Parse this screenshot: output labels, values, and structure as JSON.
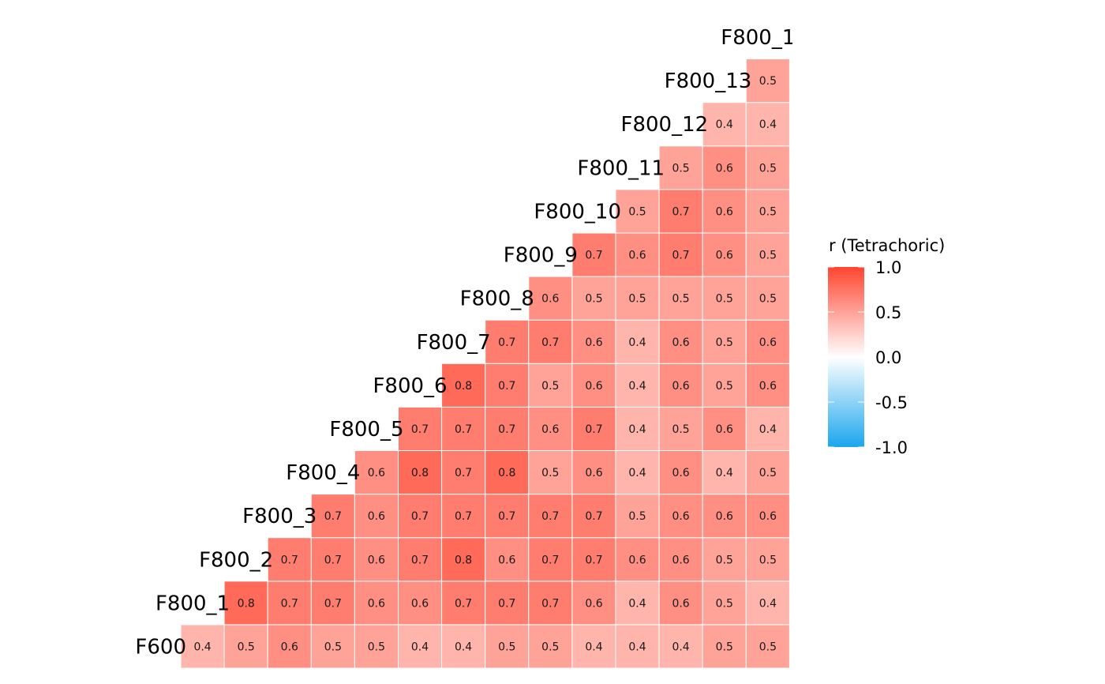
{
  "chart_data": {
    "type": "heatmap",
    "layout": "lower-triangle correlation matrix",
    "variables": [
      "F600",
      "F800_1",
      "F800_2",
      "F800_3",
      "F800_4",
      "F800_5",
      "F800_6",
      "F800_7",
      "F800_8",
      "F800_9",
      "F800_10",
      "F800_11",
      "F800_12",
      "F800_13",
      "F800_1"
    ],
    "rows": [
      {
        "label": "F600",
        "values": [
          0.4,
          0.5,
          0.6,
          0.5,
          0.5,
          0.4,
          0.4,
          0.5,
          0.5,
          0.4,
          0.4,
          0.4,
          0.5,
          0.5
        ]
      },
      {
        "label": "F800_1",
        "values": [
          0.8,
          0.7,
          0.7,
          0.6,
          0.6,
          0.7,
          0.7,
          0.7,
          0.6,
          0.4,
          0.6,
          0.5,
          0.4
        ]
      },
      {
        "label": "F800_2",
        "values": [
          0.7,
          0.7,
          0.6,
          0.7,
          0.8,
          0.6,
          0.7,
          0.7,
          0.6,
          0.6,
          0.5,
          0.5
        ]
      },
      {
        "label": "F800_3",
        "values": [
          0.7,
          0.6,
          0.7,
          0.7,
          0.7,
          0.7,
          0.7,
          0.5,
          0.6,
          0.6,
          0.6
        ]
      },
      {
        "label": "F800_4",
        "values": [
          0.6,
          0.8,
          0.7,
          0.8,
          0.5,
          0.6,
          0.4,
          0.6,
          0.4,
          0.5
        ]
      },
      {
        "label": "F800_5",
        "values": [
          0.7,
          0.7,
          0.7,
          0.6,
          0.7,
          0.4,
          0.5,
          0.6,
          0.4
        ]
      },
      {
        "label": "F800_6",
        "values": [
          0.8,
          0.7,
          0.5,
          0.6,
          0.4,
          0.6,
          0.5,
          0.6
        ]
      },
      {
        "label": "F800_7",
        "values": [
          0.7,
          0.7,
          0.6,
          0.4,
          0.6,
          0.5,
          0.6
        ]
      },
      {
        "label": "F800_8",
        "values": [
          0.6,
          0.5,
          0.5,
          0.5,
          0.5,
          0.5
        ]
      },
      {
        "label": "F800_9",
        "values": [
          0.7,
          0.6,
          0.7,
          0.6,
          0.5
        ]
      },
      {
        "label": "F800_10",
        "values": [
          0.5,
          0.7,
          0.6,
          0.5
        ]
      },
      {
        "label": "F800_11",
        "values": [
          0.5,
          0.6,
          0.5
        ]
      },
      {
        "label": "F800_12",
        "values": [
          0.4,
          0.4
        ]
      },
      {
        "label": "F800_13",
        "values": [
          0.5
        ]
      },
      {
        "label": "F800_1",
        "values": []
      }
    ],
    "color_scale": {
      "title": "r (Tetrachoric)",
      "min": -1.0,
      "max": 1.0,
      "low_color": "#1aa6ee",
      "mid_color": "#ffffff",
      "high_color": "#ff4530",
      "ticks": [
        "1.0",
        "0.5",
        "0.0",
        "-0.5",
        "-1.0"
      ]
    },
    "grid": false,
    "legend_position": "right"
  }
}
